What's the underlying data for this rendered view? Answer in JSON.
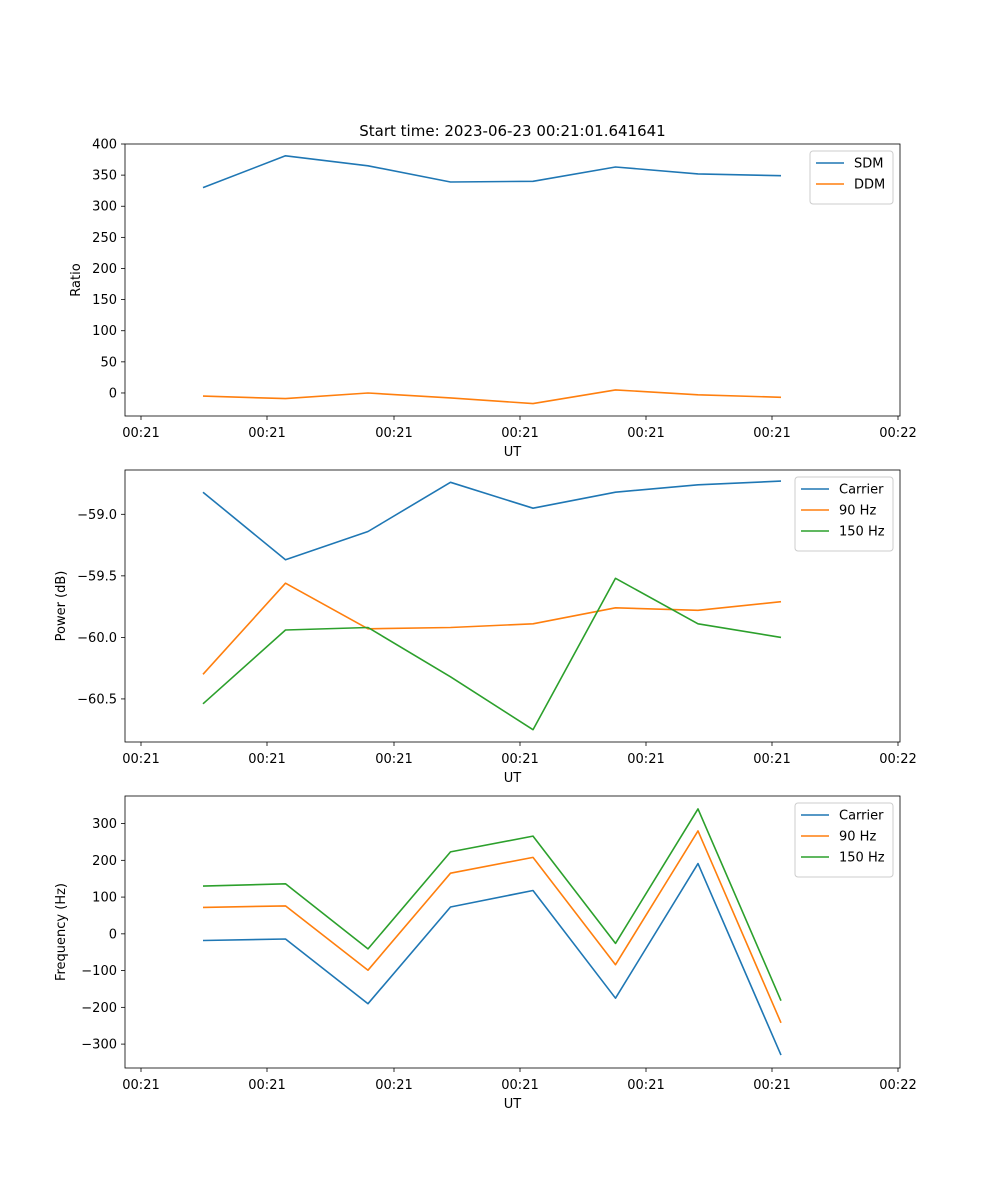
{
  "title": "Start time: 2023-06-23 00:21:01.641641",
  "chart_data": [
    {
      "type": "line",
      "xlabel": "UT",
      "ylabel": "Ratio",
      "x_tick_labels": [
        "00:21",
        "00:21",
        "00:21",
        "00:21",
        "00:21",
        "00:21",
        "00:22"
      ],
      "yticks": [
        0,
        50,
        100,
        150,
        200,
        250,
        300,
        350,
        400
      ],
      "ylim": [
        -37,
        400
      ],
      "legend": "top-right",
      "series": [
        {
          "name": "SDM",
          "color": "#1f77b4",
          "values": [
            330,
            381,
            365,
            339,
            340,
            363,
            352,
            349
          ]
        },
        {
          "name": "DDM",
          "color": "#ff7f0e",
          "values": [
            -5,
            -9,
            0,
            -8,
            -17,
            5,
            -3,
            -7
          ]
        }
      ]
    },
    {
      "type": "line",
      "xlabel": "UT",
      "ylabel": "Power (dB)",
      "x_tick_labels": [
        "00:21",
        "00:21",
        "00:21",
        "00:21",
        "00:21",
        "00:21",
        "00:22"
      ],
      "yticks": [
        -59.0,
        -59.5,
        -60.0,
        -60.5
      ],
      "ytick_labels": [
        "−59.0",
        "−59.5",
        "−60.0",
        "−60.5"
      ],
      "ylim": [
        -60.85,
        -58.64
      ],
      "legend": "top-right",
      "series": [
        {
          "name": "Carrier",
          "color": "#1f77b4",
          "values": [
            -58.82,
            -59.37,
            -59.14,
            -58.74,
            -58.95,
            -58.82,
            -58.76,
            -58.73
          ]
        },
        {
          "name": "90 Hz",
          "color": "#ff7f0e",
          "values": [
            -60.3,
            -59.56,
            -59.93,
            -59.92,
            -59.89,
            -59.76,
            -59.78,
            -59.71
          ]
        },
        {
          "name": "150 Hz",
          "color": "#2ca02c",
          "values": [
            -60.54,
            -59.94,
            -59.92,
            -60.32,
            -60.75,
            -59.52,
            -59.89,
            -60.0
          ]
        }
      ]
    },
    {
      "type": "line",
      "xlabel": "UT",
      "ylabel": "Frequency (Hz)",
      "x_tick_labels": [
        "00:21",
        "00:21",
        "00:21",
        "00:21",
        "00:21",
        "00:21",
        "00:22"
      ],
      "yticks": [
        -300,
        -200,
        -100,
        0,
        100,
        200,
        300
      ],
      "ytick_labels": [
        "−300",
        "−200",
        "−100",
        "0",
        "100",
        "200",
        "300"
      ],
      "ylim": [
        -365,
        375
      ],
      "legend": "top-right",
      "series": [
        {
          "name": "Carrier",
          "color": "#1f77b4",
          "values": [
            -18,
            -14,
            -190,
            73,
            118,
            -175,
            191,
            -330
          ]
        },
        {
          "name": "90 Hz",
          "color": "#ff7f0e",
          "values": [
            72,
            76,
            -99,
            165,
            208,
            -84,
            280,
            -242
          ]
        },
        {
          "name": "150 Hz",
          "color": "#2ca02c",
          "values": [
            130,
            136,
            -41,
            223,
            266,
            -26,
            340,
            -182
          ]
        }
      ]
    }
  ]
}
